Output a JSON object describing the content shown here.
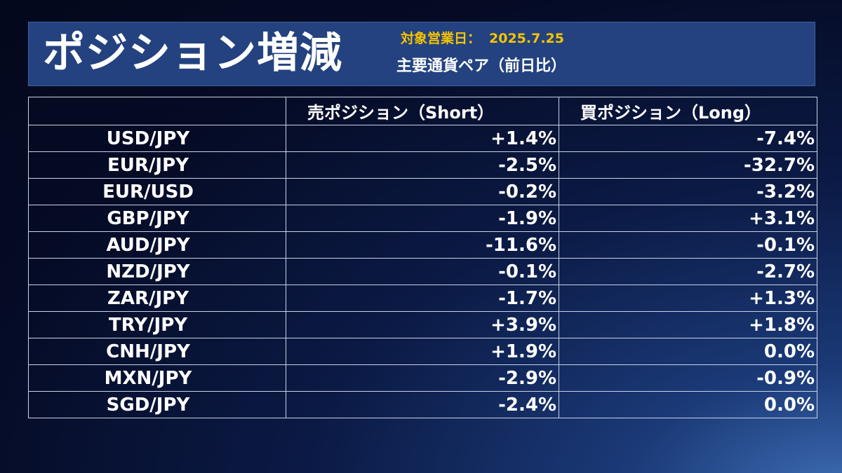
{
  "header": {
    "title": "ポジション増減",
    "date_label": "対象営業日：",
    "date_value": "2025.7.25",
    "subtitle": "主要通貨ペア（前日比）"
  },
  "table": {
    "columns": [
      "",
      "売ポジション（Short）",
      "買ポジション（Long）"
    ],
    "rows": [
      {
        "pair": "USD/JPY",
        "short": "+1.4%",
        "long": "-7.4%"
      },
      {
        "pair": "EUR/JPY",
        "short": "-2.5%",
        "long": "-32.7%"
      },
      {
        "pair": "EUR/USD",
        "short": "-0.2%",
        "long": "-3.2%"
      },
      {
        "pair": "GBP/JPY",
        "short": "-1.9%",
        "long": "+3.1%"
      },
      {
        "pair": "AUD/JPY",
        "short": "-11.6%",
        "long": "-0.1%"
      },
      {
        "pair": "NZD/JPY",
        "short": "-0.1%",
        "long": "-2.7%"
      },
      {
        "pair": "ZAR/JPY",
        "short": "-1.7%",
        "long": "+1.3%"
      },
      {
        "pair": "TRY/JPY",
        "short": "+3.9%",
        "long": "+1.8%"
      },
      {
        "pair": "CNH/JPY",
        "short": "+1.9%",
        "long": "0.0%"
      },
      {
        "pair": "MXN/JPY",
        "short": "-2.9%",
        "long": "-0.9%"
      },
      {
        "pair": "SGD/JPY",
        "short": "-2.4%",
        "long": "0.0%"
      }
    ]
  },
  "colors": {
    "header_bg": "#23427f",
    "date_text": "#f5c400",
    "text": "#ffffff",
    "grid": "#c9d3e6"
  }
}
